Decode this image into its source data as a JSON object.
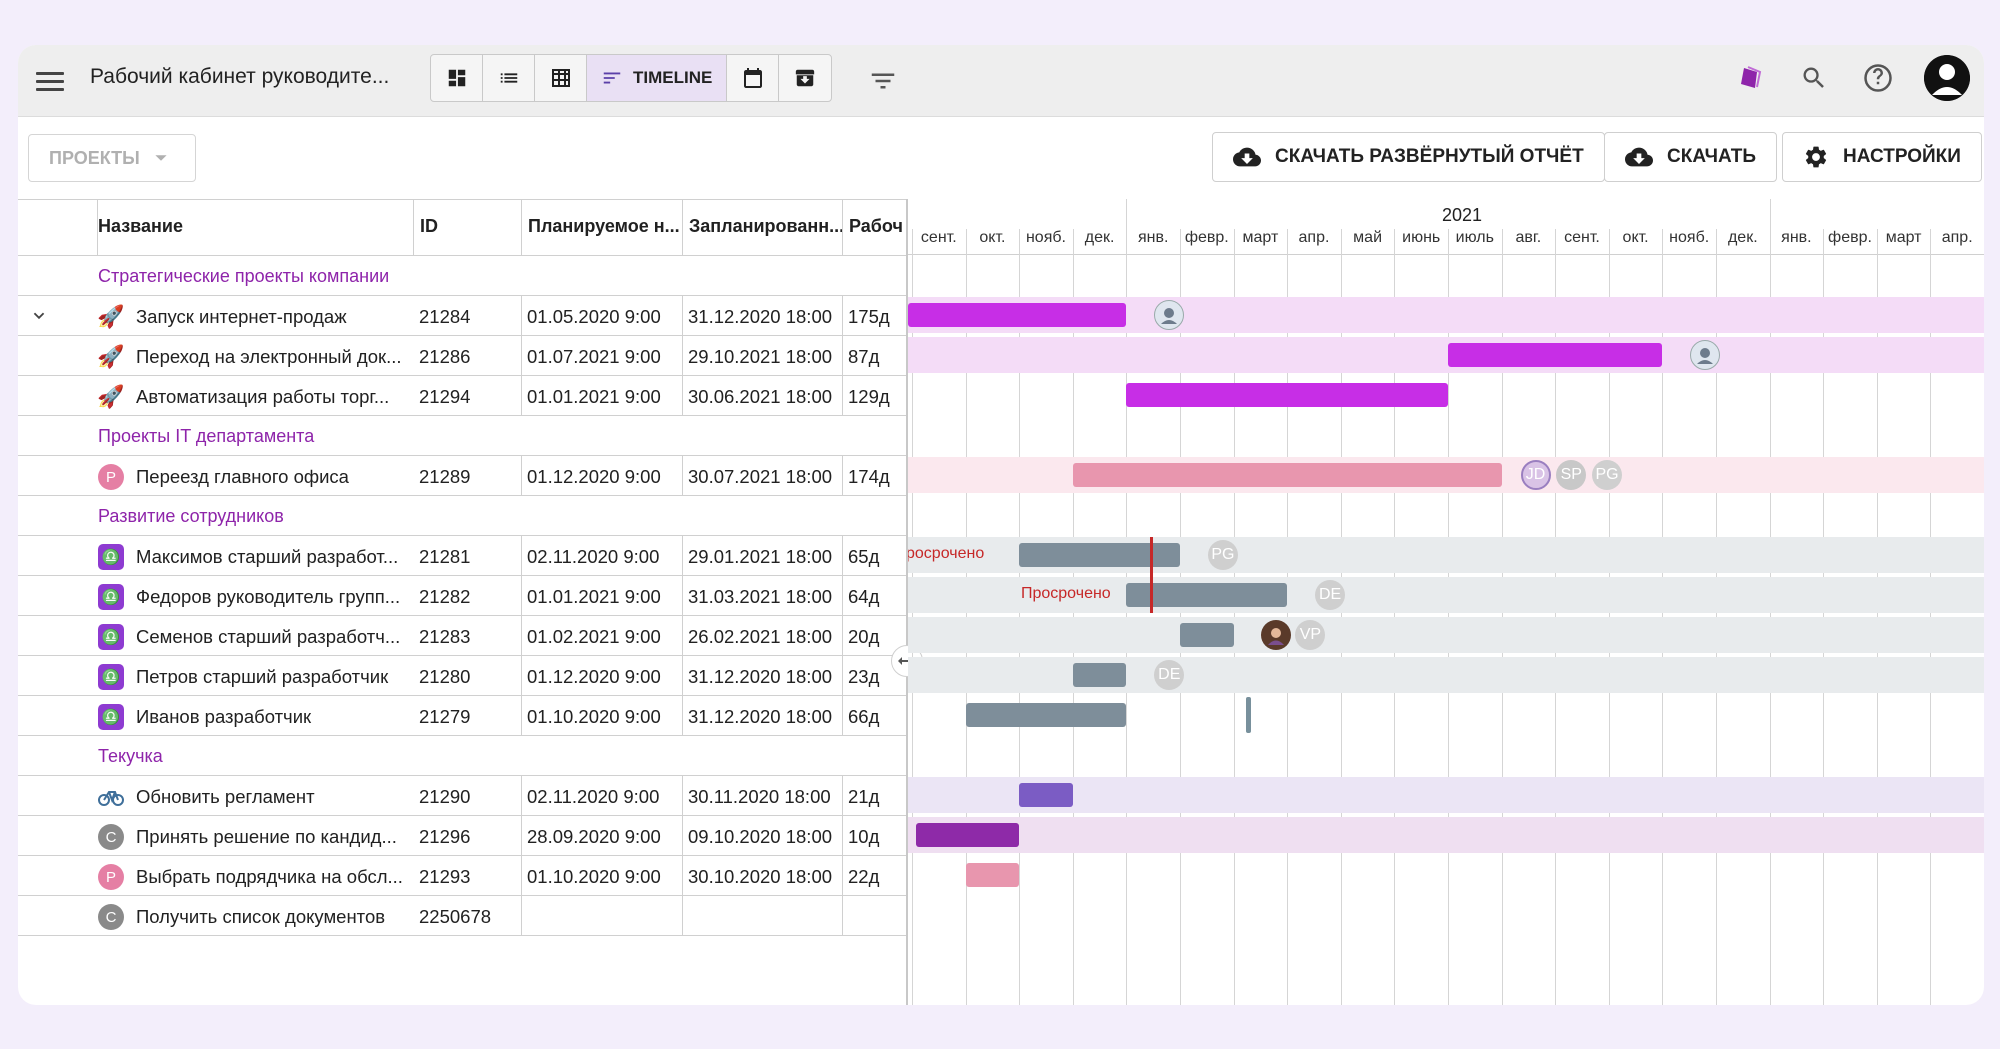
{
  "topbar": {
    "menu_icon": "menu-icon",
    "title": "Рабочий кабинет руководите...",
    "views": [
      {
        "icon": "dashboard-icon",
        "label": ""
      },
      {
        "icon": "list-icon",
        "label": ""
      },
      {
        "icon": "table-icon",
        "label": ""
      },
      {
        "icon": "timeline-icon",
        "label": "TIMELINE",
        "active": true
      },
      {
        "icon": "calendar-icon",
        "label": ""
      },
      {
        "icon": "archive-icon",
        "label": ""
      }
    ],
    "filter_icon": "filter-icon",
    "right": [
      "tag-icon",
      "search-icon",
      "help-icon",
      "account-avatar"
    ]
  },
  "toolbar": {
    "projects_label": "ПРОЕКТЫ",
    "export_full_label": "СКАЧАТЬ РАЗВЁРНУТЫЙ ОТЧЁТ",
    "export_label": "СКАЧАТЬ",
    "settings_label": "НАСТРОЙКИ"
  },
  "columns": {
    "name": "Название",
    "id": "ID",
    "planned_start": "Планируемое н...",
    "planned_end": "Запланированн...",
    "work": "Рабоч"
  },
  "rows": [
    {
      "type": "group",
      "title": "Стратегические проекты компании"
    },
    {
      "type": "item",
      "icon": "rocket",
      "name": "Запуск интернет-продаж",
      "id": "21284",
      "start": "01.05.2020 9:00",
      "end": "31.12.2020 18:00",
      "work": "175д",
      "expandable": true
    },
    {
      "type": "item",
      "icon": "rocket",
      "name": "Переход на электронный док...",
      "id": "21286",
      "start": "01.07.2021 9:00",
      "end": "29.10.2021 18:00",
      "work": "87д"
    },
    {
      "type": "item",
      "icon": "rocket",
      "name": "Автоматизация работы торг...",
      "id": "21294",
      "start": "01.01.2021 9:00",
      "end": "30.06.2021 18:00",
      "work": "129д"
    },
    {
      "type": "group",
      "title": "Проекты IT департамента"
    },
    {
      "type": "item",
      "icon": "P",
      "name": "Переезд главного офиса",
      "id": "21289",
      "start": "01.12.2020 9:00",
      "end": "30.07.2021 18:00",
      "work": "174д"
    },
    {
      "type": "group",
      "title": "Развитие сотрудников"
    },
    {
      "type": "item",
      "icon": "libra",
      "name": "Максимов старший разработ...",
      "id": "21281",
      "start": "02.11.2020 9:00",
      "end": "29.01.2021 18:00",
      "work": "65д"
    },
    {
      "type": "item",
      "icon": "libra",
      "name": "Федоров руководитель групп...",
      "id": "21282",
      "start": "01.01.2021 9:00",
      "end": "31.03.2021 18:00",
      "work": "64д"
    },
    {
      "type": "item",
      "icon": "libra",
      "name": "Семенов старший разработч...",
      "id": "21283",
      "start": "01.02.2021 9:00",
      "end": "26.02.2021 18:00",
      "work": "20д"
    },
    {
      "type": "item",
      "icon": "libra",
      "name": "Петров старший разработчик",
      "id": "21280",
      "start": "01.12.2020 9:00",
      "end": "31.12.2020 18:00",
      "work": "23д"
    },
    {
      "type": "item",
      "icon": "libra",
      "name": "Иванов разработчик",
      "id": "21279",
      "start": "01.10.2020 9:00",
      "end": "31.12.2020 18:00",
      "work": "66д"
    },
    {
      "type": "group",
      "title": "Текучка"
    },
    {
      "type": "item",
      "icon": "bike",
      "name": "Обновить регламент",
      "id": "21290",
      "start": "02.11.2020 9:00",
      "end": "30.11.2020 18:00",
      "work": "21д"
    },
    {
      "type": "item",
      "icon": "C",
      "name": "Принять решение по кандид...",
      "id": "21296",
      "start": "28.09.2020 9:00",
      "end": "09.10.2020 18:00",
      "work": "10д"
    },
    {
      "type": "item",
      "icon": "P",
      "name": "Выбрать подрядчика на обсл...",
      "id": "21293",
      "start": "01.10.2020 9:00",
      "end": "30.10.2020 18:00",
      "work": "22д"
    },
    {
      "type": "item",
      "icon": "C",
      "name": "Получить список документов",
      "id": "2250678",
      "start": "",
      "end": "",
      "work": ""
    }
  ],
  "timeline": {
    "year": "2021",
    "months": [
      "сент.",
      "окт.",
      "нояб.",
      "дек.",
      "янв.",
      "февр.",
      "март",
      "апр.",
      "май",
      "июнь",
      "июль",
      "авг.",
      "сент.",
      "окт.",
      "нояб.",
      "дек.",
      "янв.",
      "февр.",
      "март",
      "апр."
    ],
    "overdue_label": "Просрочено",
    "overdue_label_cut": "росрочено",
    "assignees": {
      "jd": "JD",
      "sp": "SP",
      "pg": "PG",
      "de": "DE",
      "vp": "VP"
    }
  },
  "colors": {
    "accent": "#8e24aa",
    "bar_magenta": "#c72ee6",
    "bar_pink": "#e896ae",
    "bar_gray": "#7e8e9a",
    "bar_indigo": "#7b5cc4",
    "bar_purple": "#8e2aa8",
    "overdue": "#c62828"
  }
}
